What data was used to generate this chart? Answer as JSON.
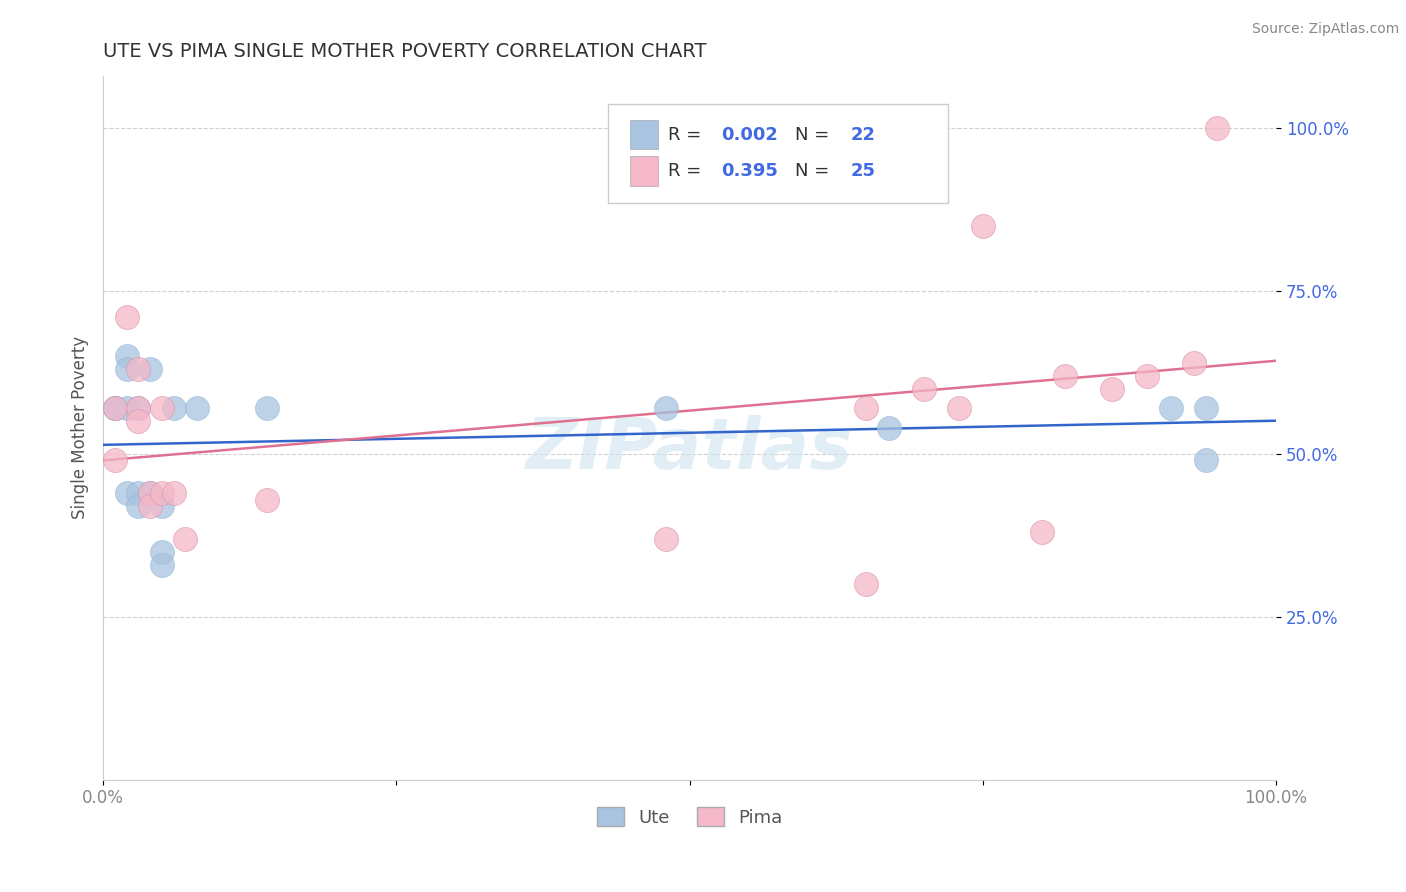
{
  "title": "UTE VS PIMA SINGLE MOTHER POVERTY CORRELATION CHART",
  "source": "Source: ZipAtlas.com",
  "ylabel": "Single Mother Poverty",
  "xlim": [
    0,
    1
  ],
  "ylim": [
    0,
    1.08
  ],
  "ute_color": "#a8c4e0",
  "pima_color": "#f4b8c8",
  "ute_line_color": "#3366cc",
  "pima_line_color": "#e07090",
  "tick_color": "#4169E1",
  "ute_R": 0.002,
  "ute_N": 22,
  "pima_R": 0.395,
  "pima_N": 25,
  "legend_label_ute": "Ute",
  "legend_label_pima": "Pima",
  "watermark": "ZIPatlas",
  "ute_x": [
    0.01,
    0.01,
    0.02,
    0.02,
    0.02,
    0.02,
    0.03,
    0.03,
    0.03,
    0.04,
    0.04,
    0.05,
    0.05,
    0.05,
    0.06,
    0.08,
    0.14,
    0.48,
    0.67,
    0.91,
    0.94,
    0.94
  ],
  "ute_y": [
    0.57,
    0.57,
    0.65,
    0.63,
    0.57,
    0.44,
    0.57,
    0.44,
    0.42,
    0.63,
    0.44,
    0.42,
    0.35,
    0.33,
    0.57,
    0.57,
    0.57,
    0.57,
    0.54,
    0.57,
    0.57,
    0.49
  ],
  "pima_x": [
    0.01,
    0.01,
    0.02,
    0.03,
    0.03,
    0.03,
    0.04,
    0.04,
    0.05,
    0.05,
    0.06,
    0.07,
    0.14,
    0.48,
    0.65,
    0.65,
    0.7,
    0.73,
    0.75,
    0.8,
    0.82,
    0.86,
    0.89,
    0.93,
    0.95
  ],
  "pima_y": [
    0.57,
    0.49,
    0.71,
    0.63,
    0.57,
    0.55,
    0.44,
    0.42,
    0.44,
    0.57,
    0.44,
    0.37,
    0.43,
    0.37,
    0.3,
    0.57,
    0.6,
    0.57,
    0.85,
    0.38,
    0.62,
    0.6,
    0.62,
    0.64,
    1.0
  ],
  "ytick_positions": [
    0.25,
    0.5,
    0.75,
    1.0
  ],
  "ytick_labels": [
    "25.0%",
    "50.0%",
    "75.0%",
    "100.0%"
  ],
  "xtick_positions": [
    0.0,
    1.0
  ],
  "xtick_labels": [
    "0.0%",
    "100.0%"
  ]
}
